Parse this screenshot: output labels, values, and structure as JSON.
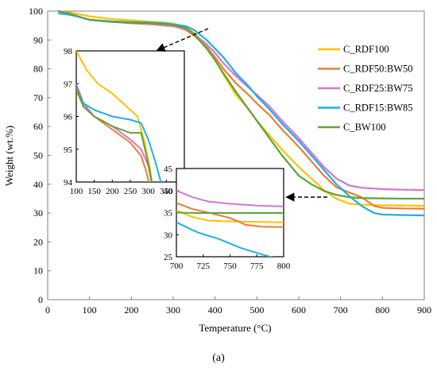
{
  "chart_data": {
    "type": "line",
    "xlabel": "Temperature (°C)",
    "ylabel": "Weight (wt.%)",
    "xlim": [
      0,
      900
    ],
    "ylim": [
      0,
      100
    ],
    "xticks": [
      0,
      100,
      200,
      300,
      400,
      500,
      600,
      700,
      800,
      900
    ],
    "yticks": [
      0,
      10,
      20,
      30,
      40,
      50,
      60,
      70,
      80,
      90,
      100
    ],
    "grid": false,
    "legend_position": "right",
    "caption": "(a)",
    "series": [
      {
        "name": "C_RDF100",
        "color": "#FFC000",
        "x": [
          25,
          50,
          80,
          100,
          150,
          200,
          250,
          280,
          300,
          330,
          350,
          380,
          400,
          420,
          450,
          480,
          500,
          530,
          560,
          600,
          630,
          660,
          690,
          720,
          750,
          800,
          850,
          900
        ],
        "y": [
          100,
          99.6,
          98.8,
          98.2,
          97.3,
          96.8,
          96.3,
          96.0,
          95.7,
          94.5,
          92.5,
          88,
          83,
          78,
          71,
          66,
          62,
          57,
          52,
          46,
          42,
          38,
          35,
          33.3,
          32.9,
          32.7,
          32.6,
          32.5
        ]
      },
      {
        "name": "C_RDF50:BW50",
        "color": "#ED7D31",
        "x": [
          25,
          50,
          80,
          100,
          150,
          200,
          250,
          280,
          300,
          330,
          350,
          380,
          400,
          420,
          450,
          480,
          500,
          530,
          560,
          600,
          630,
          660,
          690,
          720,
          750,
          780,
          800,
          850,
          900
        ],
        "y": [
          100,
          99.2,
          97.8,
          97.0,
          96.3,
          95.8,
          95.4,
          95.0,
          94.8,
          93.5,
          91.5,
          87.5,
          84,
          80,
          75,
          71,
          68,
          64,
          59,
          53,
          48,
          43,
          39,
          37.2,
          35.5,
          32.5,
          31.8,
          31.6,
          31.5
        ]
      },
      {
        "name": "C_RDF25:BW75",
        "color": "#D774D7",
        "x": [
          25,
          50,
          80,
          100,
          150,
          200,
          250,
          280,
          300,
          330,
          350,
          380,
          400,
          420,
          450,
          480,
          500,
          530,
          560,
          600,
          630,
          660,
          690,
          720,
          750,
          800,
          850,
          900
        ],
        "y": [
          100,
          99.3,
          97.9,
          97.0,
          96.3,
          95.9,
          95.6,
          95.2,
          94.9,
          93.8,
          92,
          88.5,
          85.5,
          82,
          77.5,
          73.5,
          71,
          67,
          62,
          56,
          51,
          46,
          42,
          39.6,
          38.8,
          38.3,
          38.1,
          38.0
        ]
      },
      {
        "name": "C_RDF15:BW85",
        "color": "#1CB0E8",
        "x": [
          25,
          50,
          80,
          100,
          150,
          200,
          250,
          280,
          300,
          330,
          350,
          380,
          400,
          420,
          450,
          480,
          500,
          530,
          560,
          600,
          630,
          660,
          690,
          720,
          750,
          780,
          800,
          850,
          900
        ],
        "y": [
          99.2,
          98.8,
          97.8,
          97.0,
          96.5,
          96.2,
          96.0,
          95.8,
          95.4,
          94.8,
          93.5,
          90,
          87,
          84,
          78.5,
          74,
          70.5,
          66,
          61,
          55,
          50,
          45,
          40,
          36,
          32.5,
          30,
          29.5,
          29.3,
          29.2
        ]
      },
      {
        "name": "C_BW100",
        "color": "#5BA53A",
        "x": [
          25,
          50,
          80,
          100,
          150,
          200,
          250,
          280,
          300,
          330,
          350,
          380,
          400,
          420,
          450,
          480,
          500,
          530,
          560,
          600,
          630,
          660,
          690,
          720,
          750,
          800,
          850,
          900
        ],
        "y": [
          100,
          99.2,
          97.8,
          97.0,
          96.3,
          96.0,
          95.8,
          95.5,
          95.2,
          94.2,
          92,
          87,
          83,
          78.5,
          72,
          66,
          62,
          56,
          50,
          43,
          40,
          37.7,
          36.3,
          35.5,
          35.2,
          35.1,
          35.0,
          35.0
        ]
      }
    ],
    "insets": [
      {
        "xlim": [
          100,
          400
        ],
        "ylim": [
          94,
          98
        ],
        "xticks": [
          100,
          150,
          200,
          250,
          300,
          350,
          400
        ],
        "yticks": [
          94,
          95,
          96,
          97,
          98
        ]
      },
      {
        "xlim": [
          700,
          800
        ],
        "ylim": [
          25,
          45
        ],
        "xticks": [
          700,
          725,
          750,
          775,
          800
        ],
        "yticks": [
          25,
          30,
          35,
          40,
          45
        ]
      }
    ]
  }
}
